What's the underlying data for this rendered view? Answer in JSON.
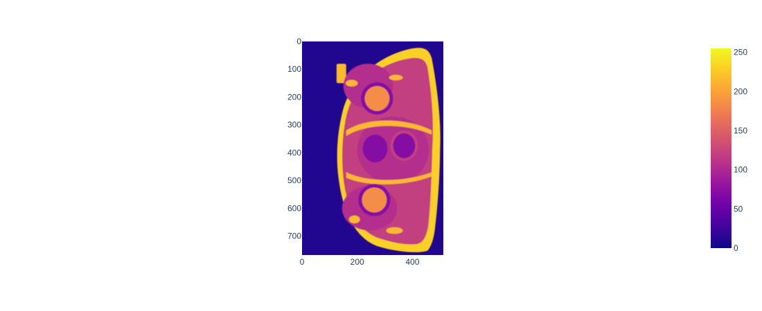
{
  "chart_data": {
    "type": "heatmap",
    "colorscale_name": "Plasma",
    "colorscale": [
      "#0d0887",
      "#46039f",
      "#7201a8",
      "#9c179e",
      "#bd3786",
      "#d8576b",
      "#ed7953",
      "#fb9f3a",
      "#fdca26",
      "#f0f921"
    ],
    "image_size": {
      "columns": 512,
      "rows": 768
    },
    "xlim": [
      0,
      512
    ],
    "ylim": [
      768,
      0
    ],
    "x_ticks": [
      "0",
      "200",
      "400"
    ],
    "x_tick_values": [
      0,
      200,
      400
    ],
    "y_ticks": [
      "0",
      "100",
      "200",
      "300",
      "400",
      "500",
      "600",
      "700"
    ],
    "y_tick_values": [
      0,
      100,
      200,
      300,
      400,
      500,
      600,
      700
    ],
    "colorbar": {
      "range": [
        0,
        255
      ],
      "ticks": [
        "0",
        "50",
        "100",
        "150",
        "200",
        "250"
      ],
      "tick_values": [
        0,
        50,
        100,
        150,
        200,
        250
      ]
    },
    "intensity_levels": {
      "background": 10,
      "tissue_dark": 70,
      "tissue_mid": 105,
      "muscle": 120,
      "femoral_head": 185,
      "fat_rim": 215,
      "bright_fat": 230
    },
    "grid": false
  }
}
